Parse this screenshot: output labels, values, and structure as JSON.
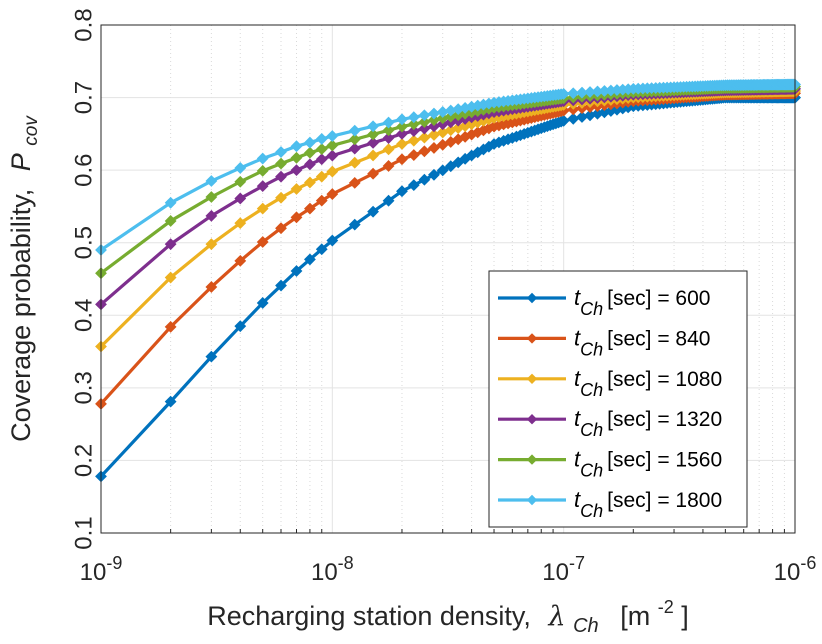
{
  "chart_data": {
    "type": "line",
    "x_scale": "log",
    "xlim": [
      1e-09,
      1e-06
    ],
    "ylim": [
      0.1,
      0.8
    ],
    "grid": true,
    "legend_position": "bottom-right",
    "xlabel": {
      "text": "Recharging station density,",
      "symbol": "λ",
      "subscript": "Ch",
      "unit_open": "[m",
      "unit_exp": "-2",
      "unit_close": "]"
    },
    "ylabel": {
      "text": "Coverage probability,",
      "symbol": "P",
      "subscript": "cov"
    },
    "x_ticks": [
      {
        "base": "10",
        "exp": "-9",
        "value": 1e-09
      },
      {
        "base": "10",
        "exp": "-8",
        "value": 1e-08
      },
      {
        "base": "10",
        "exp": "-7",
        "value": 1e-07
      },
      {
        "base": "10",
        "exp": "-6",
        "value": 1e-06
      }
    ],
    "y_ticks": [
      "0.1",
      "0.2",
      "0.3",
      "0.4",
      "0.5",
      "0.6",
      "0.7",
      "0.8"
    ],
    "x": [
      1e-09,
      2e-09,
      3e-09,
      4e-09,
      5e-09,
      6e-09,
      7e-09,
      8e-09,
      9e-09,
      1e-08,
      2e-08,
      5e-08,
      1e-07,
      2e-07,
      5e-07,
      1e-06
    ],
    "series": [
      {
        "name": "t_Ch [sec] = 600",
        "legend_symbol": "t",
        "legend_sub": "Ch",
        "legend_rest": "[sec] = 600",
        "color": "#0072BD",
        "values": [
          0.178,
          0.281,
          0.343,
          0.385,
          0.417,
          0.441,
          0.461,
          0.477,
          0.491,
          0.503,
          0.571,
          0.636,
          0.668,
          0.688,
          0.7,
          0.7
        ]
      },
      {
        "name": "t_Ch [sec] = 840",
        "legend_symbol": "t",
        "legend_sub": "Ch",
        "legend_rest": "[sec] = 840",
        "color": "#D95319",
        "values": [
          0.278,
          0.384,
          0.439,
          0.475,
          0.501,
          0.52,
          0.535,
          0.547,
          0.558,
          0.567,
          0.615,
          0.66,
          0.682,
          0.695,
          0.704,
          0.706
        ]
      },
      {
        "name": "t_Ch [sec] = 1080",
        "legend_symbol": "t",
        "legend_sub": "Ch",
        "legend_rest": "[sec] = 1080",
        "color": "#EDB120",
        "values": [
          0.357,
          0.452,
          0.498,
          0.527,
          0.547,
          0.562,
          0.574,
          0.583,
          0.591,
          0.598,
          0.636,
          0.672,
          0.69,
          0.7,
          0.707,
          0.709
        ]
      },
      {
        "name": "t_Ch [sec] = 1320",
        "legend_symbol": "t",
        "legend_sub": "Ch",
        "legend_rest": "[sec] = 1320",
        "color": "#7E2F8E",
        "values": [
          0.415,
          0.498,
          0.537,
          0.561,
          0.578,
          0.591,
          0.6,
          0.608,
          0.615,
          0.62,
          0.65,
          0.68,
          0.695,
          0.704,
          0.71,
          0.712
        ]
      },
      {
        "name": "t_Ch [sec] = 1560",
        "legend_symbol": "t",
        "legend_sub": "Ch",
        "legend_rest": "[sec] = 1560",
        "color": "#77AC30",
        "values": [
          0.458,
          0.53,
          0.563,
          0.584,
          0.599,
          0.609,
          0.617,
          0.624,
          0.629,
          0.634,
          0.66,
          0.686,
          0.699,
          0.707,
          0.713,
          0.715
        ]
      },
      {
        "name": "t_Ch [sec] = 1800",
        "legend_symbol": "t",
        "legend_sub": "Ch",
        "legend_rest": "[sec] = 1800",
        "color": "#4DBEEE",
        "values": [
          0.49,
          0.555,
          0.585,
          0.603,
          0.616,
          0.625,
          0.633,
          0.638,
          0.643,
          0.647,
          0.67,
          0.693,
          0.705,
          0.712,
          0.717,
          0.718
        ]
      }
    ]
  }
}
